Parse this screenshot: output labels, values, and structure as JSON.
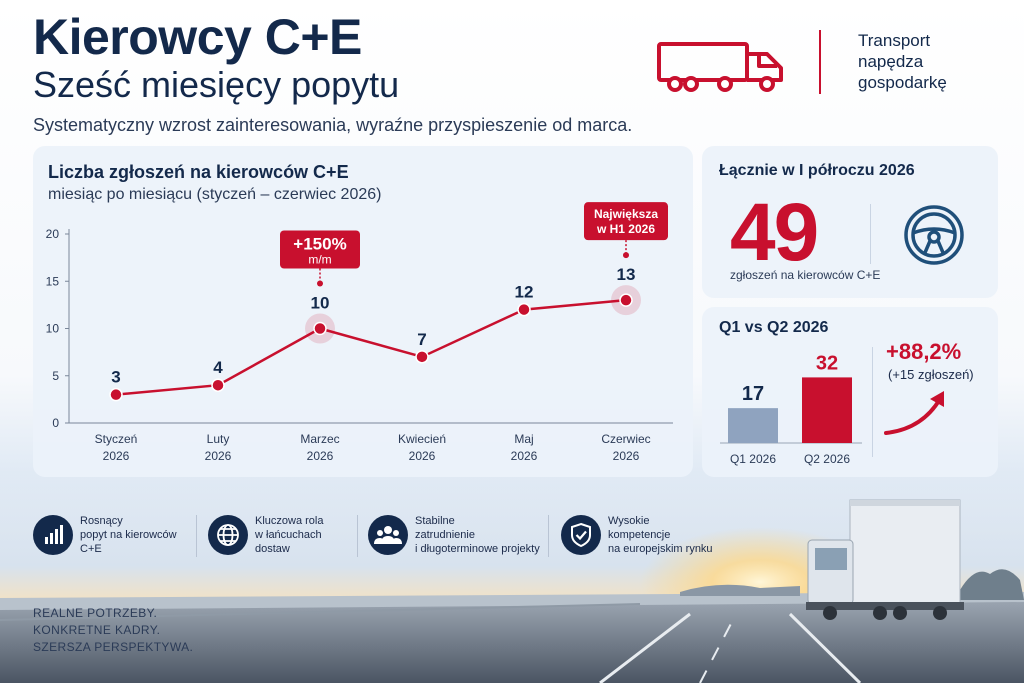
{
  "header": {
    "title": "Kierowcy C+E",
    "subtitle": "Sześć miesięcy popytu",
    "tagline": "Systematyczny wzrost zainteresowania, wyraźne przyspieszenie od marca.",
    "brand_lines": [
      "Transport",
      "napędza",
      "gospodarkę"
    ],
    "logo_icon": "truck-icon"
  },
  "colors": {
    "accent": "#c8102e",
    "navy": "#13294b",
    "bar_q1": "#8fa3bf"
  },
  "chart_data": {
    "type": "line",
    "title": "Liczba zgłoszeń na kierowców C+E",
    "subtitle": "miesiąc po miesiącu (styczeń – czerwiec 2026)",
    "categories": [
      "Styczeń 2026",
      "Luty 2026",
      "Marzec 2026",
      "Kwiecień 2026",
      "Maj 2026",
      "Czerwiec 2026"
    ],
    "category_lines": [
      [
        "Styczeń",
        "2026"
      ],
      [
        "Luty",
        "2026"
      ],
      [
        "Marzec",
        "2026"
      ],
      [
        "Kwiecień",
        "2026"
      ],
      [
        "Maj",
        "2026"
      ],
      [
        "Czerwiec",
        "2026"
      ]
    ],
    "values": [
      3,
      4,
      10,
      7,
      12,
      13
    ],
    "ylim": [
      0,
      20
    ],
    "yticks": [
      0,
      5,
      10,
      15,
      20
    ],
    "grid": false,
    "highlighted": [
      2,
      5
    ],
    "annotations": [
      {
        "index": 2,
        "lines": [
          "+150%",
          "m/m"
        ]
      },
      {
        "index": 5,
        "lines": [
          "Największa",
          "w H1 2026"
        ]
      }
    ]
  },
  "total": {
    "heading": "Łącznie w I półroczu 2026",
    "value": "49",
    "label": "zgłoszeń na kierowców C+E",
    "icon": "steering-wheel-icon"
  },
  "quarters": {
    "heading": "Q1 vs Q2 2026",
    "bars": [
      {
        "label": "Q1 2026",
        "value": 17
      },
      {
        "label": "Q2 2026",
        "value": 32
      }
    ],
    "change_pct": "+88,2%",
    "change_abs": "(+15 zgłoszeń)",
    "icon": "trend-arrow-icon"
  },
  "features": [
    {
      "icon": "bar-chart-icon",
      "lines": [
        "Rosnący",
        "popyt na kierowców",
        "C+E"
      ]
    },
    {
      "icon": "globe-icon",
      "lines": [
        "Kluczowa rola",
        "w łańcuchach",
        "dostaw"
      ]
    },
    {
      "icon": "people-icon",
      "lines": [
        "Stabilne",
        "zatrudnienie",
        "i długoterminowe projekty"
      ]
    },
    {
      "icon": "shield-check-icon",
      "lines": [
        "Wysokie",
        "kompetencje",
        "na europejskim rynku"
      ]
    }
  ],
  "closing": [
    "REALNE POTRZEBY.",
    "KONKRETNE KADRY.",
    "SZERSZA PERSPEKTYWA."
  ]
}
